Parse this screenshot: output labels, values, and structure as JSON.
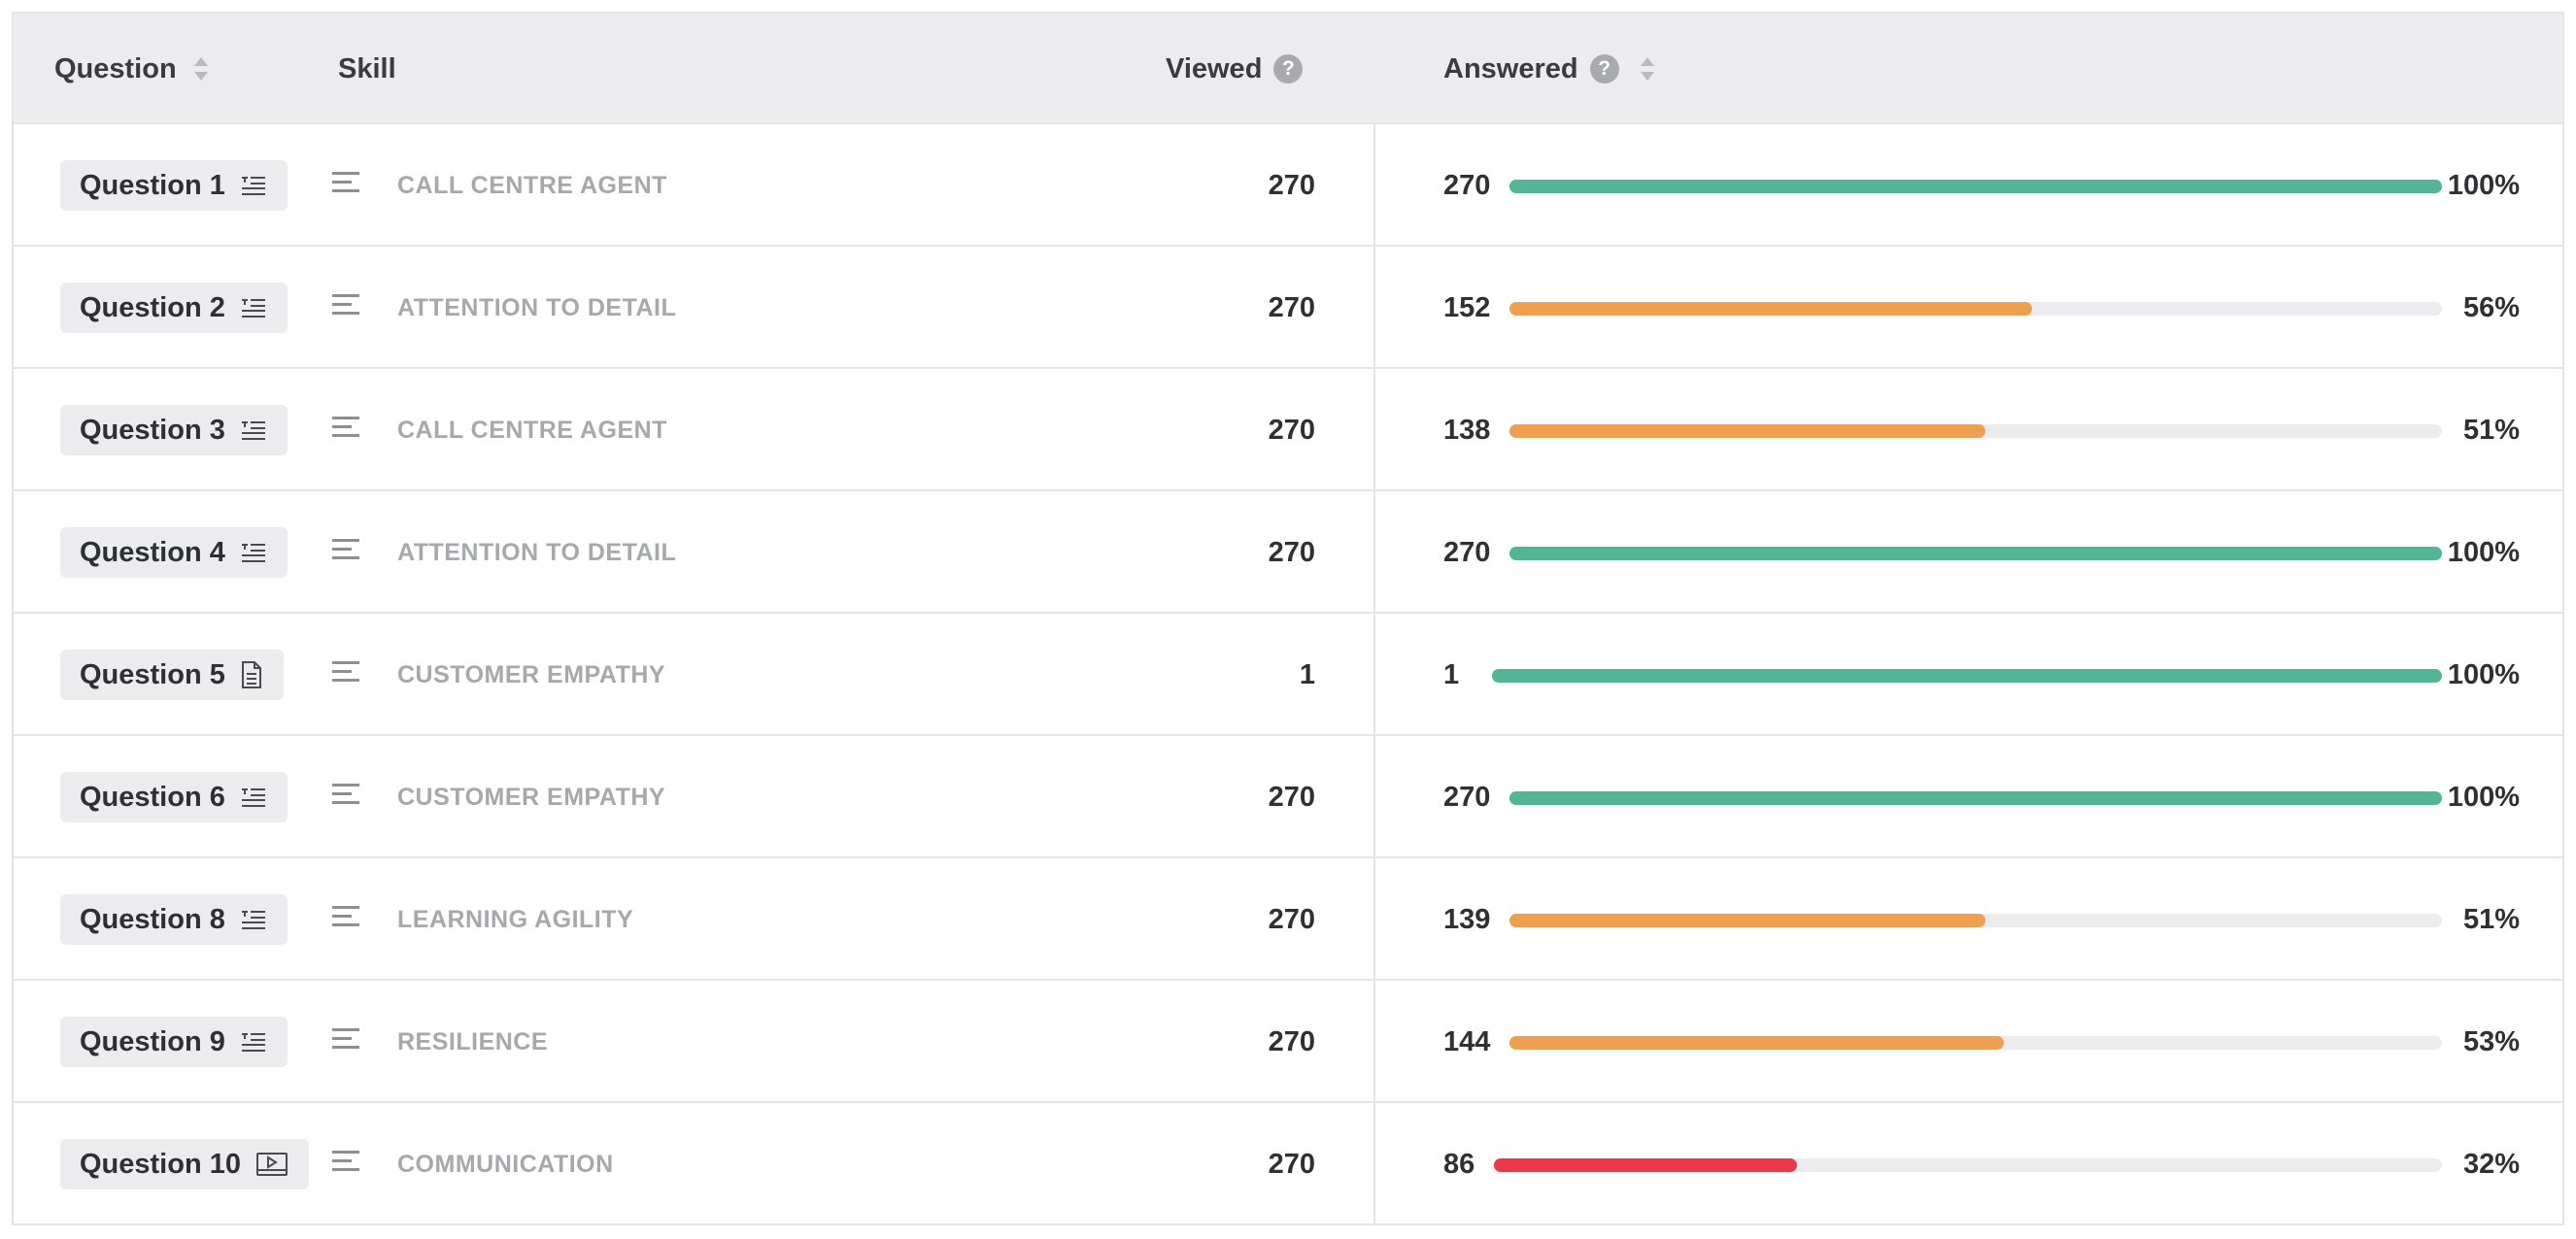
{
  "header": {
    "question_label": "Question",
    "skill_label": "Skill",
    "viewed_label": "Viewed",
    "answered_label": "Answered",
    "help_glyph": "?"
  },
  "colors": {
    "green": "#52b596",
    "orange": "#eea050",
    "red": "#e8384a",
    "track": "#ececee"
  },
  "rows": [
    {
      "question": "Question 1",
      "type_icon": "list-icon",
      "skill": "CALL CENTRE AGENT",
      "viewed": "270",
      "answered": "270",
      "percent_label": "100%",
      "percent": 100,
      "status": "green"
    },
    {
      "question": "Question 2",
      "type_icon": "list-icon",
      "skill": "ATTENTION TO DETAIL",
      "viewed": "270",
      "answered": "152",
      "percent_label": "56%",
      "percent": 56,
      "status": "orange"
    },
    {
      "question": "Question 3",
      "type_icon": "list-icon",
      "skill": "CALL CENTRE AGENT",
      "viewed": "270",
      "answered": "138",
      "percent_label": "51%",
      "percent": 51,
      "status": "orange"
    },
    {
      "question": "Question 4",
      "type_icon": "list-icon",
      "skill": "ATTENTION TO DETAIL",
      "viewed": "270",
      "answered": "270",
      "percent_label": "100%",
      "percent": 100,
      "status": "green"
    },
    {
      "question": "Question 5",
      "type_icon": "document-icon",
      "skill": "CUSTOMER EMPATHY",
      "viewed": "1",
      "answered": "1",
      "percent_label": "100%",
      "percent": 100,
      "status": "green"
    },
    {
      "question": "Question 6",
      "type_icon": "list-icon",
      "skill": "CUSTOMER EMPATHY",
      "viewed": "270",
      "answered": "270",
      "percent_label": "100%",
      "percent": 100,
      "status": "green"
    },
    {
      "question": "Question 8",
      "type_icon": "list-icon",
      "skill": "LEARNING AGILITY",
      "viewed": "270",
      "answered": "139",
      "percent_label": "51%",
      "percent": 51,
      "status": "orange"
    },
    {
      "question": "Question 9",
      "type_icon": "list-icon",
      "skill": "RESILIENCE",
      "viewed": "270",
      "answered": "144",
      "percent_label": "53%",
      "percent": 53,
      "status": "orange"
    },
    {
      "question": "Question 10",
      "type_icon": "video-icon",
      "skill": "COMMUNICATION",
      "viewed": "270",
      "answered": "86",
      "percent_label": "32%",
      "percent": 32,
      "status": "red"
    }
  ]
}
